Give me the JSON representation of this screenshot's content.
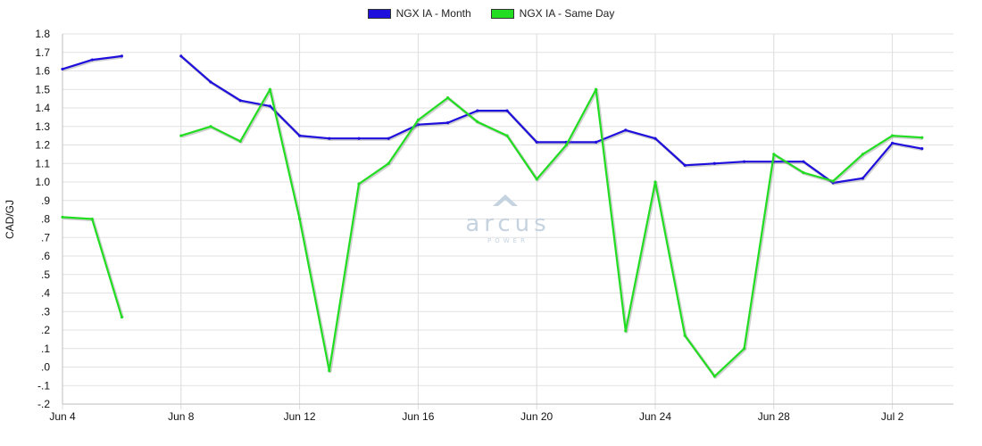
{
  "chart_data": {
    "type": "line",
    "ylabel": "CAD/GJ",
    "ylim": [
      -0.2,
      1.8
    ],
    "yticks": [
      -0.2,
      -0.1,
      0.0,
      0.1,
      0.2,
      0.3,
      0.4,
      0.5,
      0.6,
      0.7,
      0.8,
      0.9,
      1.0,
      1.1,
      1.2,
      1.3,
      1.4,
      1.5,
      1.6,
      1.7,
      1.8
    ],
    "ytick_labels": [
      "-.2",
      "-.1",
      ".0",
      ".1",
      ".2",
      ".3",
      ".4",
      ".5",
      ".6",
      ".7",
      ".8",
      ".9",
      "1.0",
      "1.1",
      "1.2",
      "1.3",
      "1.4",
      "1.5",
      "1.6",
      "1.7",
      "1.8"
    ],
    "xdomain": [
      "2023-06-04",
      "2023-07-05"
    ],
    "xticks": [
      {
        "date": "2023-06-04",
        "label": "Jun 4"
      },
      {
        "date": "2023-06-08",
        "label": "Jun 8"
      },
      {
        "date": "2023-06-12",
        "label": "Jun 12"
      },
      {
        "date": "2023-06-16",
        "label": "Jun 16"
      },
      {
        "date": "2023-06-20",
        "label": "Jun 20"
      },
      {
        "date": "2023-06-24",
        "label": "Jun 24"
      },
      {
        "date": "2023-06-28",
        "label": "Jun 28"
      },
      {
        "date": "2023-07-02",
        "label": "Jul 2"
      }
    ],
    "grid": true,
    "legend_position": "top-center",
    "series": [
      {
        "name": "NGX IA - Month",
        "color": "#1f0fdc",
        "points": [
          {
            "x": "2023-06-04",
            "y": 1.61
          },
          {
            "x": "2023-06-05",
            "y": 1.66
          },
          {
            "x": "2023-06-06",
            "y": 1.68
          },
          {
            "x": "2023-06-08",
            "y": 1.68
          },
          {
            "x": "2023-06-09",
            "y": 1.54
          },
          {
            "x": "2023-06-10",
            "y": 1.44
          },
          {
            "x": "2023-06-11",
            "y": 1.41
          },
          {
            "x": "2023-06-12",
            "y": 1.25
          },
          {
            "x": "2023-06-13",
            "y": 1.235
          },
          {
            "x": "2023-06-14",
            "y": 1.235
          },
          {
            "x": "2023-06-15",
            "y": 1.235
          },
          {
            "x": "2023-06-16",
            "y": 1.31
          },
          {
            "x": "2023-06-17",
            "y": 1.32
          },
          {
            "x": "2023-06-18",
            "y": 1.385
          },
          {
            "x": "2023-06-19",
            "y": 1.385
          },
          {
            "x": "2023-06-20",
            "y": 1.215
          },
          {
            "x": "2023-06-21",
            "y": 1.215
          },
          {
            "x": "2023-06-22",
            "y": 1.215
          },
          {
            "x": "2023-06-23",
            "y": 1.28
          },
          {
            "x": "2023-06-24",
            "y": 1.235
          },
          {
            "x": "2023-06-25",
            "y": 1.09
          },
          {
            "x": "2023-06-26",
            "y": 1.1
          },
          {
            "x": "2023-06-27",
            "y": 1.11
          },
          {
            "x": "2023-06-28",
            "y": 1.11
          },
          {
            "x": "2023-06-29",
            "y": 1.11
          },
          {
            "x": "2023-06-30",
            "y": 0.995
          },
          {
            "x": "2023-07-01",
            "y": 1.02
          },
          {
            "x": "2023-07-02",
            "y": 1.21
          },
          {
            "x": "2023-07-03",
            "y": 1.18
          }
        ]
      },
      {
        "name": "NGX IA - Same Day",
        "color": "#22dd22",
        "points": [
          {
            "x": "2023-06-04",
            "y": 0.81
          },
          {
            "x": "2023-06-05",
            "y": 0.8
          },
          {
            "x": "2023-06-06",
            "y": 0.27
          },
          {
            "x": "2023-06-08",
            "y": 1.25
          },
          {
            "x": "2023-06-09",
            "y": 1.3
          },
          {
            "x": "2023-06-10",
            "y": 1.22
          },
          {
            "x": "2023-06-11",
            "y": 1.5
          },
          {
            "x": "2023-06-12",
            "y": 0.8
          },
          {
            "x": "2023-06-13",
            "y": -0.02
          },
          {
            "x": "2023-06-14",
            "y": 0.99
          },
          {
            "x": "2023-06-15",
            "y": 1.1
          },
          {
            "x": "2023-06-16",
            "y": 1.335
          },
          {
            "x": "2023-06-17",
            "y": 1.455
          },
          {
            "x": "2023-06-18",
            "y": 1.325
          },
          {
            "x": "2023-06-19",
            "y": 1.25
          },
          {
            "x": "2023-06-20",
            "y": 1.015
          },
          {
            "x": "2023-06-21",
            "y": 1.2
          },
          {
            "x": "2023-06-22",
            "y": 1.5
          },
          {
            "x": "2023-06-23",
            "y": 0.195
          },
          {
            "x": "2023-06-24",
            "y": 1.0
          },
          {
            "x": "2023-06-25",
            "y": 0.17
          },
          {
            "x": "2023-06-26",
            "y": -0.05
          },
          {
            "x": "2023-06-27",
            "y": 0.1
          },
          {
            "x": "2023-06-28",
            "y": 1.15
          },
          {
            "x": "2023-06-29",
            "y": 1.05
          },
          {
            "x": "2023-06-30",
            "y": 1.005
          },
          {
            "x": "2023-07-01",
            "y": 1.15
          },
          {
            "x": "2023-07-02",
            "y": 1.25
          },
          {
            "x": "2023-07-03",
            "y": 1.24
          }
        ]
      }
    ]
  },
  "watermark": {
    "brand": "arcus",
    "tagline": "POWER",
    "color": "#c5d3e0"
  }
}
